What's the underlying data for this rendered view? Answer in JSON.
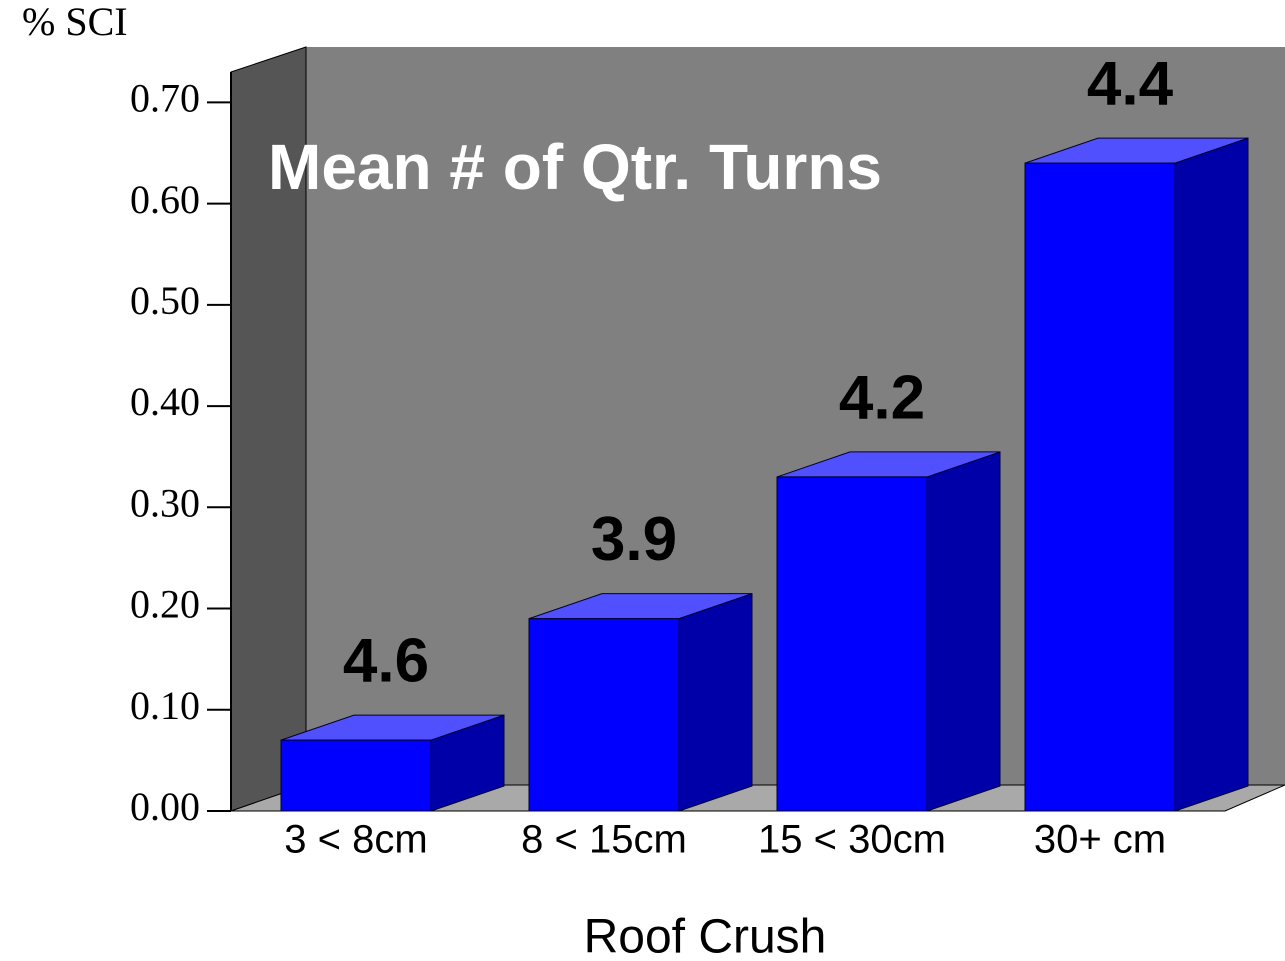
{
  "chart_data": {
    "type": "bar3d",
    "y_axis_label": "% SCI",
    "x_axis_label": "Roof Crush",
    "annotation": "Mean # of Qtr. Turns",
    "categories": [
      "3 < 8cm",
      "8 < 15cm",
      "15 < 30cm",
      "30+ cm"
    ],
    "values": [
      0.07,
      0.19,
      0.33,
      0.64
    ],
    "turns": [
      "4.6",
      "3.9",
      "4.2",
      "4.4"
    ],
    "color": "#0000ff",
    "ylim": [
      0,
      0.73
    ],
    "yticks": [
      {
        "value": 0,
        "label": "0.00"
      },
      {
        "value": 0.1,
        "label": "0.10"
      },
      {
        "value": 0.2,
        "label": "0.20"
      },
      {
        "value": 0.3,
        "label": "0.30"
      },
      {
        "value": 0.4,
        "label": "0.40"
      },
      {
        "value": 0.5,
        "label": "0.50"
      },
      {
        "value": 0.6,
        "label": "0.60"
      },
      {
        "value": 0.7,
        "label": "0.70"
      }
    ]
  }
}
